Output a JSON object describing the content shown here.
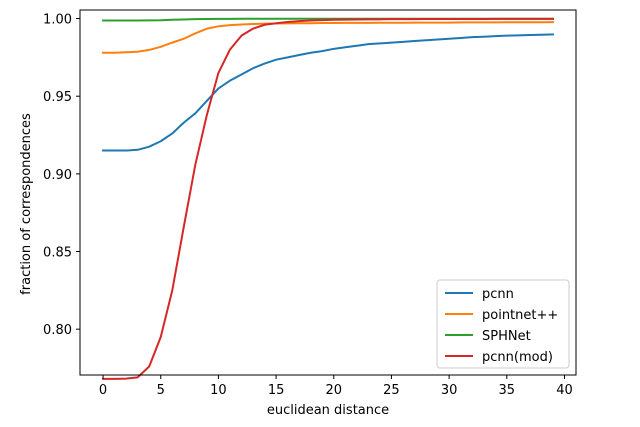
{
  "chart_data": {
    "type": "line",
    "title": "",
    "xlabel": "euclidean distance",
    "ylabel": "fraction of correspondences",
    "xlim": [
      -2,
      41
    ],
    "ylim": [
      0.7705,
      1.0055
    ],
    "xticks": [
      0,
      5,
      10,
      15,
      20,
      25,
      30,
      35,
      40
    ],
    "yticks": [
      0.8,
      0.85,
      0.9,
      0.95,
      1.0
    ],
    "ytick_labels": [
      "0.80",
      "0.85",
      "0.90",
      "0.95",
      "1.00"
    ],
    "grid": false,
    "legend_position": "bottom-right",
    "x": [
      0,
      1,
      2,
      3,
      4,
      5,
      6,
      7,
      8,
      9,
      10,
      11,
      12,
      13,
      14,
      15,
      16,
      17,
      18,
      19,
      20,
      21,
      22,
      23,
      24,
      25,
      26,
      27,
      28,
      29,
      30,
      31,
      32,
      33,
      34,
      35,
      36,
      37,
      38,
      39
    ],
    "series": [
      {
        "name": "pcnn",
        "color": "#1f77b4",
        "values": [
          0.915,
          0.915,
          0.915,
          0.9155,
          0.9175,
          0.921,
          0.926,
          0.933,
          0.939,
          0.947,
          0.955,
          0.96,
          0.964,
          0.968,
          0.971,
          0.9735,
          0.975,
          0.9765,
          0.978,
          0.979,
          0.9805,
          0.9815,
          0.9825,
          0.9835,
          0.984,
          0.9845,
          0.985,
          0.9855,
          0.986,
          0.9865,
          0.987,
          0.9875,
          0.988,
          0.9883,
          0.9887,
          0.989,
          0.9892,
          0.9894,
          0.9896,
          0.9898
        ]
      },
      {
        "name": "pointnet++",
        "color": "#ff7f0e",
        "values": [
          0.978,
          0.978,
          0.9783,
          0.9786,
          0.9798,
          0.9818,
          0.9845,
          0.987,
          0.9905,
          0.9935,
          0.995,
          0.9958,
          0.9962,
          0.9965,
          0.9967,
          0.9968,
          0.9969,
          0.997,
          0.997,
          0.9971,
          0.9971,
          0.9972,
          0.9972,
          0.9972,
          0.9973,
          0.9973,
          0.9973,
          0.9974,
          0.9974,
          0.9974,
          0.9974,
          0.9975,
          0.9975,
          0.9975,
          0.9975,
          0.9976,
          0.9976,
          0.9976,
          0.9976,
          0.9977
        ]
      },
      {
        "name": "SPHNet",
        "color": "#2ca02c",
        "values": [
          0.9987,
          0.9987,
          0.9987,
          0.9987,
          0.9988,
          0.9989,
          0.9992,
          0.9994,
          0.9996,
          0.9997,
          0.9998,
          0.9998,
          0.9999,
          0.9999,
          0.9999,
          0.9999,
          0.9999,
          0.9999,
          0.9999,
          0.9999,
          0.9999,
          0.9999,
          0.9999,
          0.9999,
          0.9999,
          0.9999,
          0.9999,
          0.9999,
          0.9999,
          0.9999,
          0.9999,
          0.9999,
          0.9999,
          0.9999,
          0.9999,
          0.9999,
          0.9999,
          0.9999,
          0.9999,
          0.9999
        ]
      },
      {
        "name": "pcnn(mod)",
        "color": "#d62728",
        "values": [
          0.768,
          0.768,
          0.7682,
          0.769,
          0.776,
          0.795,
          0.825,
          0.866,
          0.906,
          0.938,
          0.965,
          0.98,
          0.989,
          0.9935,
          0.996,
          0.997,
          0.9978,
          0.9983,
          0.9987,
          0.999,
          0.9992,
          0.9993,
          0.9994,
          0.9995,
          0.9995,
          0.9996,
          0.9996,
          0.9996,
          0.9997,
          0.9997,
          0.9997,
          0.9997,
          0.9997,
          0.9997,
          0.9998,
          0.9998,
          0.9998,
          0.9998,
          0.9998,
          0.9998
        ]
      }
    ]
  }
}
